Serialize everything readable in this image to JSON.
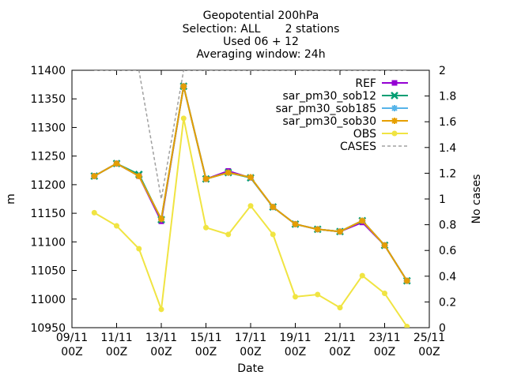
{
  "chart_data": {
    "type": "line",
    "title": [
      "Geopotential 200hPa",
      "Selection: ALL       2 stations",
      "Used 06 + 12",
      "Averaging window: 24h"
    ],
    "xlabel": "Date",
    "ylabel": "m",
    "y2label": "No cases",
    "x_range_days": [
      9,
      25
    ],
    "ylim": [
      10950,
      11400
    ],
    "y2lim": [
      0,
      2
    ],
    "x_ticks": [
      {
        "day": 9,
        "label": [
          "09/11",
          "00Z"
        ]
      },
      {
        "day": 11,
        "label": [
          "11/11",
          "00Z"
        ]
      },
      {
        "day": 13,
        "label": [
          "13/11",
          "00Z"
        ]
      },
      {
        "day": 15,
        "label": [
          "15/11",
          "00Z"
        ]
      },
      {
        "day": 17,
        "label": [
          "17/11",
          "00Z"
        ]
      },
      {
        "day": 19,
        "label": [
          "19/11",
          "00Z"
        ]
      },
      {
        "day": 21,
        "label": [
          "21/11",
          "00Z"
        ]
      },
      {
        "day": 23,
        "label": [
          "23/11",
          "00Z"
        ]
      },
      {
        "day": 25,
        "label": [
          "25/11",
          "00Z"
        ]
      }
    ],
    "y_ticks": [
      "10950",
      "11000",
      "11050",
      "11100",
      "11150",
      "11200",
      "11250",
      "11300",
      "11350",
      "11400"
    ],
    "y2_ticks": [
      "0",
      "0.2",
      "0.4",
      "0.6",
      "0.8",
      "1",
      "1.2",
      "1.4",
      "1.6",
      "1.8",
      "2"
    ],
    "x": [
      10,
      11,
      12,
      13,
      14,
      15,
      16,
      17,
      18,
      19,
      20,
      21,
      22,
      23,
      24
    ],
    "series": [
      {
        "name": "REF",
        "color": "#9400d3",
        "marker": "square",
        "values": [
          11215,
          11237,
          11215,
          11136,
          11372,
          11210,
          11224,
          11212,
          11161,
          11131,
          11122,
          11118,
          11134,
          11094,
          11032
        ]
      },
      {
        "name": "sar_pm30_sob12",
        "color": "#009e73",
        "marker": "cross",
        "values": [
          11215,
          11237,
          11218,
          11139,
          11372,
          11210,
          11221,
          11212,
          11161,
          11131,
          11122,
          11118,
          11137,
          11094,
          11032
        ]
      },
      {
        "name": "sar_pm30_sob185",
        "color": "#56b4e9",
        "marker": "star",
        "values": [
          11215,
          11237,
          11215,
          11140,
          11372,
          11210,
          11221,
          11213,
          11161,
          11131,
          11122,
          11118,
          11137,
          11094,
          11032
        ]
      },
      {
        "name": "sar_pm30_sob30",
        "color": "#e69f00",
        "marker": "star",
        "values": [
          11215,
          11237,
          11215,
          11140,
          11372,
          11210,
          11221,
          11213,
          11161,
          11131,
          11122,
          11118,
          11137,
          11094,
          11032
        ]
      },
      {
        "name": "OBS",
        "color": "#f0e442",
        "marker": "dot",
        "values": [
          11151,
          11128,
          11088,
          10982,
          11316,
          11125,
          11113,
          11163,
          11113,
          11004,
          11008,
          10985,
          11041,
          11010,
          10952
        ]
      },
      {
        "name": "CASES",
        "color": "#a0a0a0",
        "marker": "none",
        "dashed": true,
        "axis": "y2",
        "values": [
          2,
          2,
          2,
          1,
          2,
          2,
          2,
          2,
          2,
          2,
          2,
          2,
          2,
          2,
          2
        ]
      }
    ],
    "legend_placement": "top-right",
    "grid": false
  }
}
